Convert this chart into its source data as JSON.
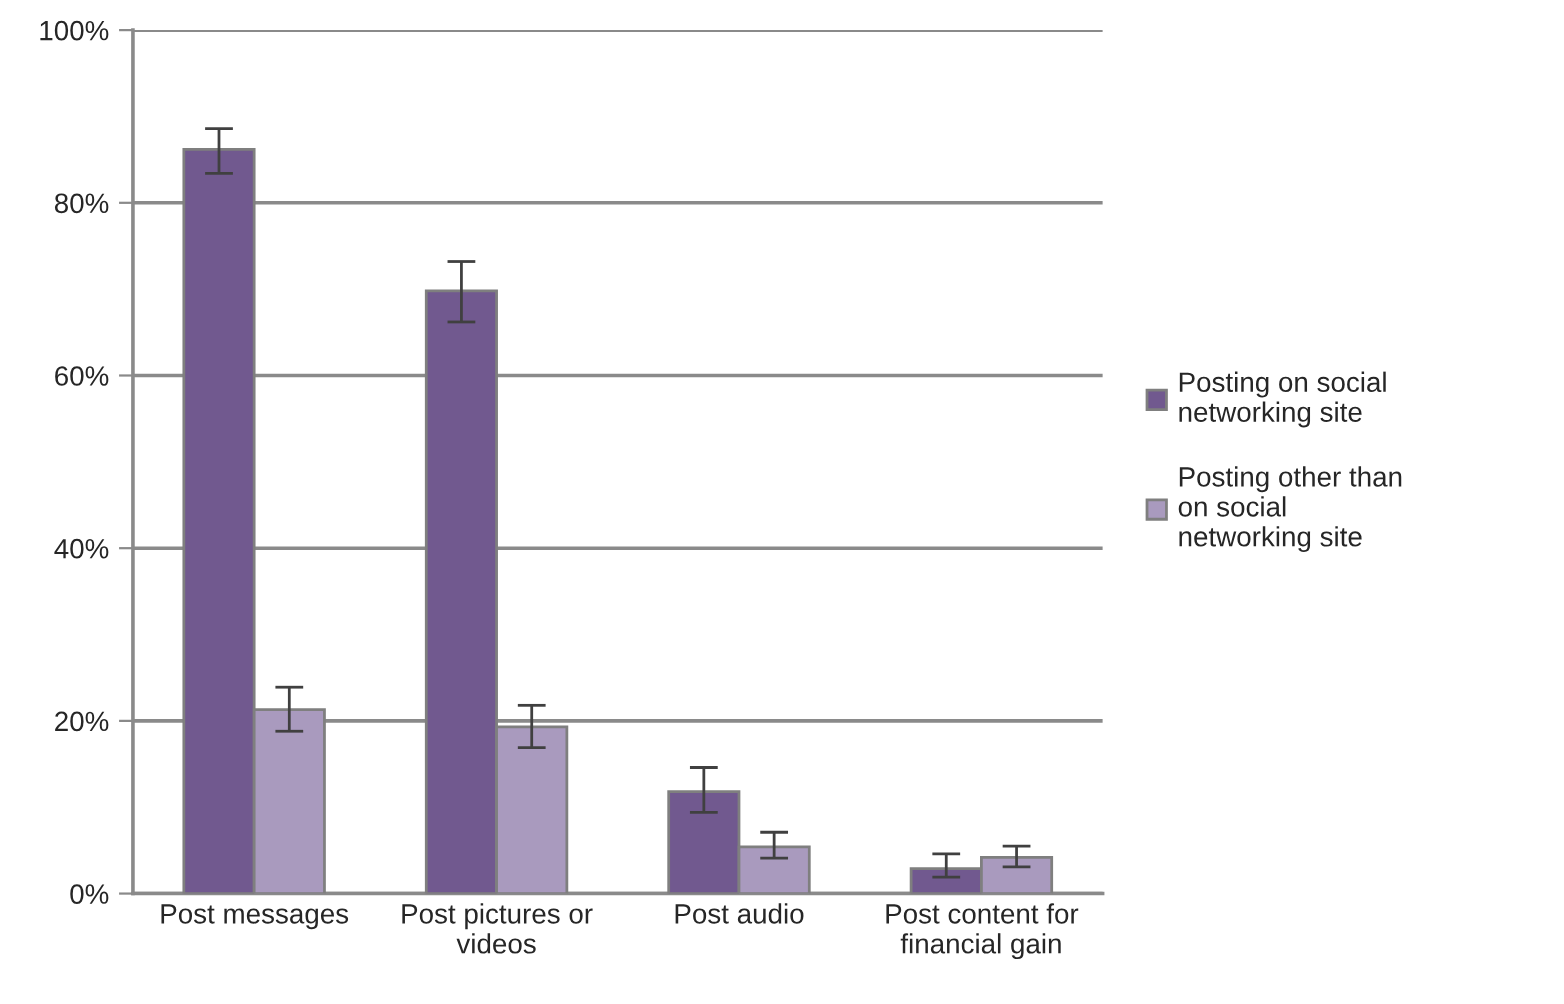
{
  "chart_data": {
    "type": "bar",
    "categories": [
      "Post messages",
      "Post pictures or videos",
      "Post audio",
      "Post content for financial gain"
    ],
    "series": [
      {
        "name": "Posting on social networking site",
        "color": "#71598f",
        "values": [
          86.2,
          69.8,
          11.8,
          2.9
        ],
        "errors": [
          [
            83.4,
            88.6
          ],
          [
            66.2,
            73.2
          ],
          [
            9.4,
            14.6
          ],
          [
            1.9,
            4.6
          ]
        ]
      },
      {
        "name": "Posting other than on social networking site",
        "color": "#a99abe",
        "values": [
          21.3,
          19.3,
          5.4,
          4.2
        ],
        "errors": [
          [
            18.8,
            23.9
          ],
          [
            16.9,
            21.8
          ],
          [
            4.1,
            7.1
          ],
          [
            3.1,
            5.5
          ]
        ]
      }
    ],
    "ylim": [
      0,
      100
    ],
    "yticks": [
      {
        "value": 0,
        "label": "0%"
      },
      {
        "value": 20,
        "label": "20%"
      },
      {
        "value": 40,
        "label": "40%"
      },
      {
        "value": 60,
        "label": "60%"
      },
      {
        "value": 80,
        "label": "80%"
      },
      {
        "value": 100,
        "label": "100%"
      }
    ],
    "grid": "y",
    "legend": "right"
  }
}
